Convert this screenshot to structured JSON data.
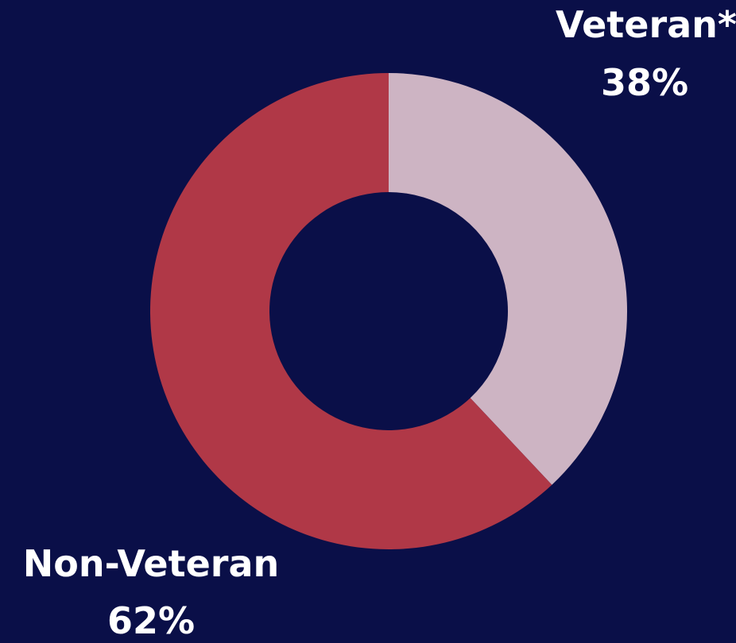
{
  "colors": {
    "background": "#0a0f48",
    "veteran": "#cdb4c3",
    "non_veteran": "#b03847"
  },
  "chart_data": {
    "type": "pie",
    "donut": true,
    "categories": [
      "Veteran*",
      "Non-Veteran"
    ],
    "values": [
      38,
      62
    ],
    "value_labels": [
      "38%",
      "62%"
    ],
    "title": ""
  }
}
